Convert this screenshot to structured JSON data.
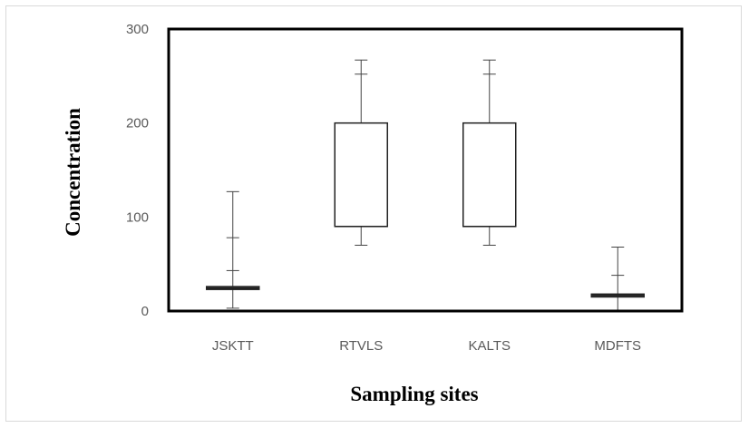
{
  "chart_data": {
    "type": "box",
    "categories": [
      "JSKTT",
      "RTVLS",
      "KALTS",
      "MDFTS"
    ],
    "xlabel": "Sampling sites",
    "ylabel": "Concentration",
    "ylim": [
      0,
      300
    ],
    "yticks": [
      "0",
      "100",
      "200",
      "300"
    ],
    "boxes": [
      {
        "category": "JSKTT",
        "min": 3,
        "q1": 23,
        "median": 24,
        "q3": 26,
        "max": 127,
        "upper_marks": [
          43,
          78
        ]
      },
      {
        "category": "RTVLS",
        "min": 70,
        "q1": 90,
        "median": 90,
        "q3": 200,
        "max": 267,
        "upper_marks": [
          252
        ]
      },
      {
        "category": "KALTS",
        "min": 70,
        "q1": 90,
        "median": 90,
        "q3": 200,
        "max": 267,
        "upper_marks": [
          252
        ]
      },
      {
        "category": "MDFTS",
        "min": 0,
        "q1": 15,
        "median": 17,
        "q3": 18,
        "max": 68,
        "upper_marks": [
          38
        ]
      }
    ],
    "grid": false,
    "legend": "none"
  }
}
